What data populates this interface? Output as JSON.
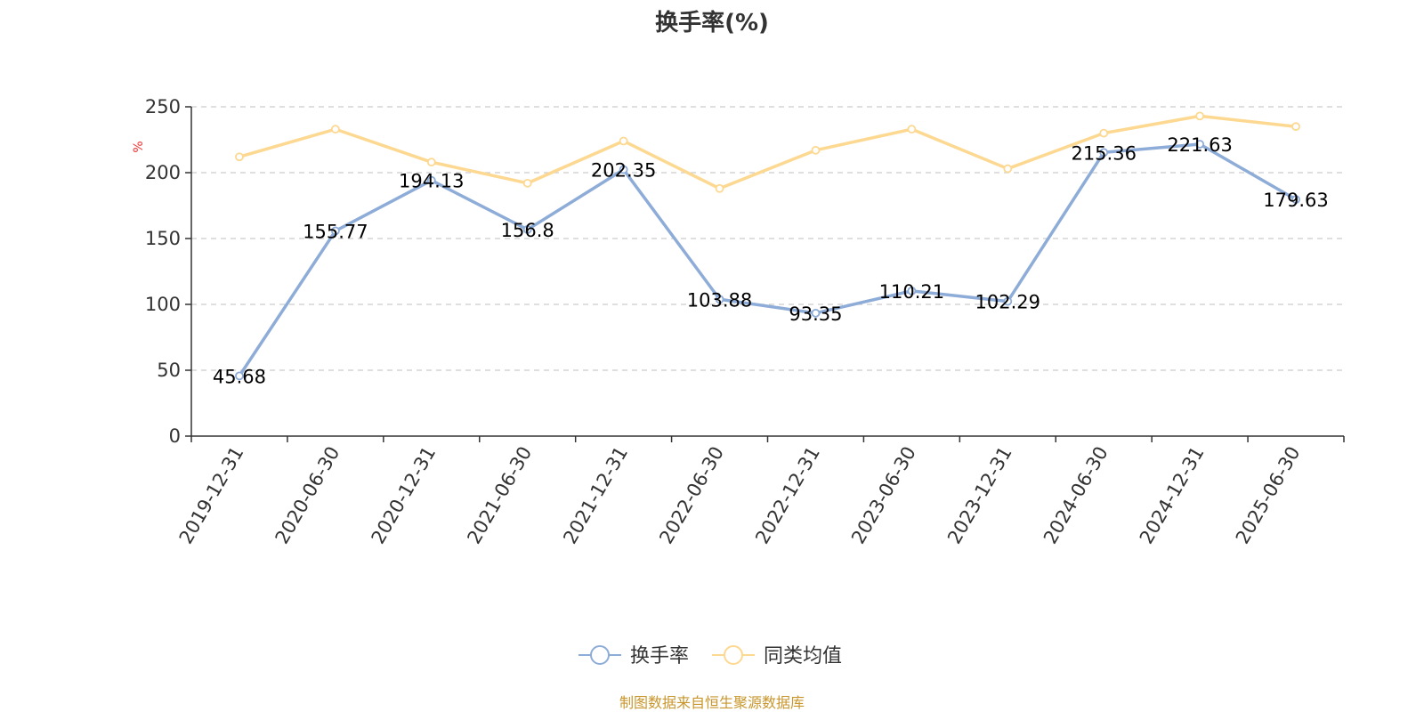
{
  "chart_data": {
    "type": "line",
    "title": "换手率(%)",
    "ylabel": "%",
    "ylim": [
      0,
      250
    ],
    "yticks": [
      0,
      50,
      100,
      150,
      200,
      250
    ],
    "grid": true,
    "legend_position": "bottom-center",
    "categories": [
      "2019-12-31",
      "2020-06-30",
      "2020-12-31",
      "2021-06-30",
      "2021-12-31",
      "2022-06-30",
      "2022-12-31",
      "2023-06-30",
      "2023-12-31",
      "2024-06-30",
      "2024-12-31",
      "2025-06-30"
    ],
    "series": [
      {
        "name": "换手率",
        "color": "#8eacd8",
        "values": [
          45.68,
          155.77,
          194.13,
          156.8,
          202.35,
          103.88,
          93.35,
          110.21,
          102.29,
          215.36,
          221.63,
          179.63
        ],
        "labels": [
          "45.68",
          "155.77",
          "194.13",
          "156.8",
          "202.35",
          "103.88",
          "93.35",
          "110.21",
          "102.29",
          "215.36",
          "221.63",
          "179.63"
        ],
        "show_labels": true
      },
      {
        "name": "同类均值",
        "color": "#fdd891",
        "values": [
          212,
          233,
          208,
          192,
          224,
          188,
          217,
          233,
          203,
          230,
          243,
          235
        ],
        "show_labels": false
      }
    ],
    "source": "制图数据来自恒生聚源数据库",
    "unit_color": "#ee3333",
    "source_color": "#c8962c"
  }
}
